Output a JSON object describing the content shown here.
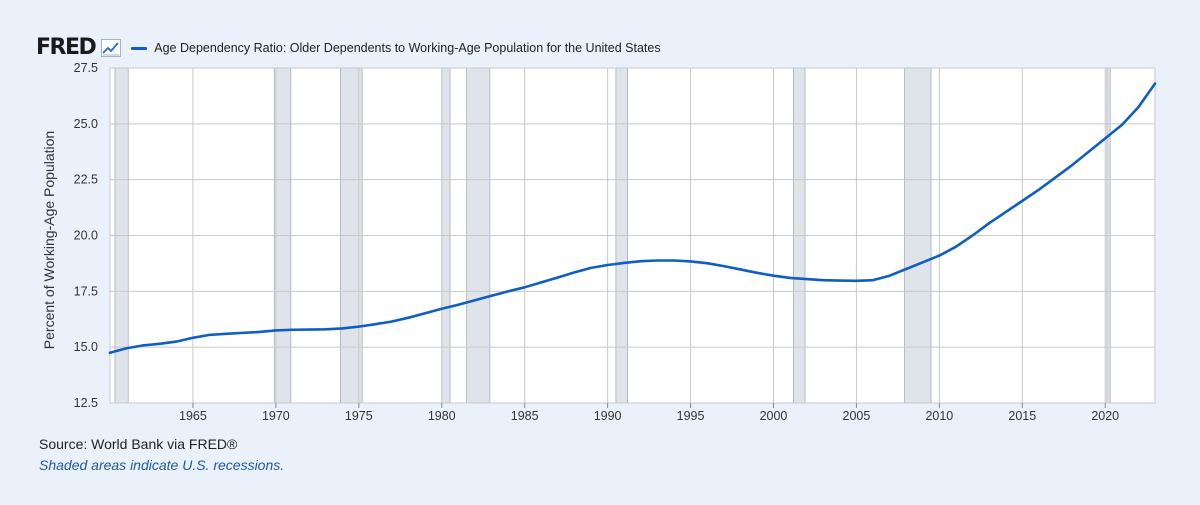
{
  "header": {
    "logo_text": "FRED",
    "logo_icon": "line-chart-icon",
    "series_color": "#0f5ec4"
  },
  "chart_data": {
    "type": "line",
    "title": "Age Dependency Ratio: Older Dependents to Working-Age Population for the United States",
    "xlabel": "",
    "ylabel": "Percent of Working-Age Population",
    "xlim": [
      1960,
      2023
    ],
    "ylim": [
      12.5,
      27.5
    ],
    "y_ticks": [
      12.5,
      15.0,
      17.5,
      20.0,
      22.5,
      25.0,
      27.5
    ],
    "y_tick_labels": [
      "12.5",
      "15.0",
      "17.5",
      "20.0",
      "22.5",
      "25.0",
      "27.5"
    ],
    "x_ticks": [
      1965,
      1970,
      1975,
      1980,
      1985,
      1990,
      1995,
      2000,
      2005,
      2010,
      2015,
      2020
    ],
    "x_tick_labels": [
      "1965",
      "1970",
      "1975",
      "1980",
      "1985",
      "1990",
      "1995",
      "2000",
      "2005",
      "2010",
      "2015",
      "2020"
    ],
    "grid": true,
    "recessions": [
      [
        1960.3,
        1961.1
      ],
      [
        1969.9,
        1970.9
      ],
      [
        1973.9,
        1975.2
      ],
      [
        1980.0,
        1980.5
      ],
      [
        1981.5,
        1982.9
      ],
      [
        1990.5,
        1991.2
      ],
      [
        2001.2,
        2001.9
      ],
      [
        2007.9,
        2009.5
      ],
      [
        2020.1,
        2020.3
      ]
    ],
    "series": [
      {
        "name": "Age Dependency Ratio: Older Dependents to Working-Age Population for the United States",
        "x": [
          1960,
          1961,
          1962,
          1963,
          1964,
          1965,
          1966,
          1967,
          1968,
          1969,
          1970,
          1971,
          1972,
          1973,
          1974,
          1975,
          1976,
          1977,
          1978,
          1979,
          1980,
          1981,
          1982,
          1983,
          1984,
          1985,
          1986,
          1987,
          1988,
          1989,
          1990,
          1991,
          1992,
          1993,
          1994,
          1995,
          1996,
          1997,
          1998,
          1999,
          2000,
          2001,
          2002,
          2003,
          2004,
          2005,
          2006,
          2007,
          2008,
          2009,
          2010,
          2011,
          2012,
          2013,
          2014,
          2015,
          2016,
          2017,
          2018,
          2019,
          2020,
          2021,
          2022,
          2023
        ],
        "values": [
          14.75,
          14.95,
          15.08,
          15.15,
          15.25,
          15.42,
          15.55,
          15.6,
          15.64,
          15.68,
          15.75,
          15.78,
          15.79,
          15.8,
          15.84,
          15.92,
          16.03,
          16.15,
          16.32,
          16.52,
          16.72,
          16.9,
          17.1,
          17.3,
          17.5,
          17.68,
          17.9,
          18.12,
          18.35,
          18.55,
          18.68,
          18.77,
          18.85,
          18.88,
          18.88,
          18.84,
          18.76,
          18.63,
          18.48,
          18.33,
          18.2,
          18.1,
          18.05,
          18.0,
          17.98,
          17.97,
          18.0,
          18.2,
          18.5,
          18.8,
          19.1,
          19.5,
          20.0,
          20.55,
          21.05,
          21.55,
          22.05,
          22.6,
          23.15,
          23.75,
          24.35,
          24.95,
          25.75,
          26.8
        ]
      }
    ]
  },
  "footer": {
    "source": "Source: World Bank via FRED®",
    "note": "Shaded areas indicate U.S. recessions."
  }
}
